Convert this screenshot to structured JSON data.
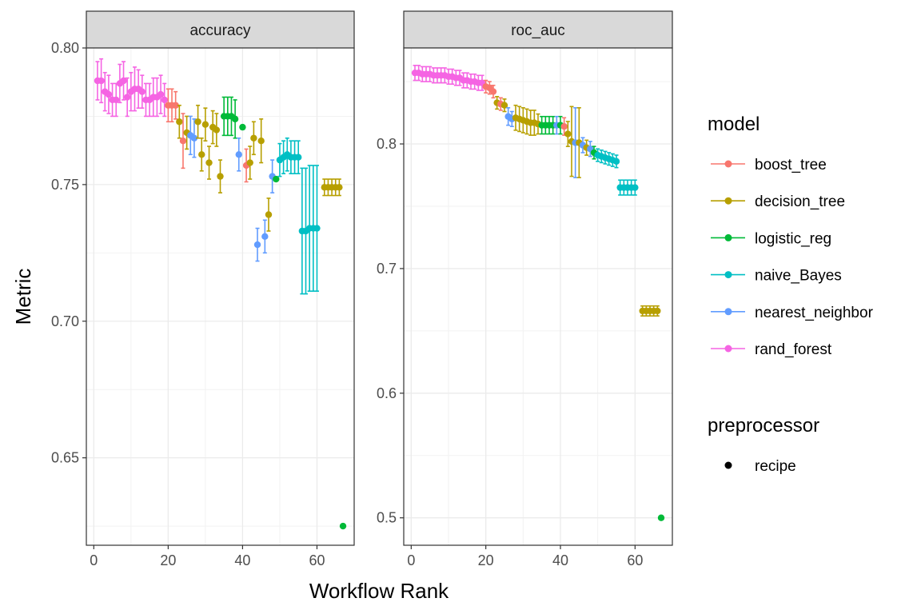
{
  "chart_data": {
    "type": "scatter",
    "xlabel": "Workflow Rank",
    "ylabel": "Metric",
    "x_ticks": [
      0,
      20,
      40,
      60
    ],
    "grid": true,
    "legend_placement": "right",
    "legend": {
      "model_title": "model",
      "preprocessor_title": "preprocessor",
      "preprocessor_items": [
        "recipe"
      ]
    },
    "models": [
      {
        "name": "boost_tree",
        "color": "#F8766D"
      },
      {
        "name": "decision_tree",
        "color": "#B79F00"
      },
      {
        "name": "logistic_reg",
        "color": "#00BA38"
      },
      {
        "name": "naive_Bayes",
        "color": "#00BFC4"
      },
      {
        "name": "nearest_neighbor",
        "color": "#619CFF"
      },
      {
        "name": "rand_forest",
        "color": "#F564E3"
      }
    ],
    "panels": [
      {
        "title": "accuracy",
        "xlim": [
          -2,
          70
        ],
        "ylim": [
          0.618,
          0.8
        ],
        "y_ticks": [
          0.65,
          0.7,
          0.75,
          0.8
        ],
        "y_tick_labels": [
          "0.65",
          "0.70",
          "0.75",
          "0.80"
        ],
        "points": [
          {
            "x": 1,
            "y": 0.788,
            "se": 0.007,
            "m": "rand_forest"
          },
          {
            "x": 2,
            "y": 0.788,
            "se": 0.008,
            "m": "rand_forest"
          },
          {
            "x": 3,
            "y": 0.784,
            "se": 0.007,
            "m": "rand_forest"
          },
          {
            "x": 4,
            "y": 0.783,
            "se": 0.007,
            "m": "rand_forest"
          },
          {
            "x": 5,
            "y": 0.781,
            "se": 0.006,
            "m": "rand_forest"
          },
          {
            "x": 6,
            "y": 0.781,
            "se": 0.006,
            "m": "rand_forest"
          },
          {
            "x": 7,
            "y": 0.787,
            "se": 0.007,
            "m": "rand_forest"
          },
          {
            "x": 8,
            "y": 0.788,
            "se": 0.007,
            "m": "rand_forest"
          },
          {
            "x": 9,
            "y": 0.782,
            "se": 0.007,
            "m": "rand_forest"
          },
          {
            "x": 10,
            "y": 0.784,
            "se": 0.007,
            "m": "rand_forest"
          },
          {
            "x": 11,
            "y": 0.785,
            "se": 0.008,
            "m": "rand_forest"
          },
          {
            "x": 12,
            "y": 0.785,
            "se": 0.007,
            "m": "rand_forest"
          },
          {
            "x": 13,
            "y": 0.784,
            "se": 0.006,
            "m": "rand_forest"
          },
          {
            "x": 14,
            "y": 0.781,
            "se": 0.006,
            "m": "rand_forest"
          },
          {
            "x": 15,
            "y": 0.781,
            "se": 0.006,
            "m": "rand_forest"
          },
          {
            "x": 16,
            "y": 0.782,
            "se": 0.007,
            "m": "rand_forest"
          },
          {
            "x": 17,
            "y": 0.782,
            "se": 0.007,
            "m": "rand_forest"
          },
          {
            "x": 18,
            "y": 0.783,
            "se": 0.007,
            "m": "rand_forest"
          },
          {
            "x": 19,
            "y": 0.781,
            "se": 0.006,
            "m": "rand_forest"
          },
          {
            "x": 20,
            "y": 0.779,
            "se": 0.006,
            "m": "boost_tree"
          },
          {
            "x": 21,
            "y": 0.779,
            "se": 0.006,
            "m": "boost_tree"
          },
          {
            "x": 22,
            "y": 0.779,
            "se": 0.005,
            "m": "boost_tree"
          },
          {
            "x": 23,
            "y": 0.773,
            "se": 0.006,
            "m": "decision_tree"
          },
          {
            "x": 24,
            "y": 0.766,
            "se": 0.01,
            "m": "boost_tree"
          },
          {
            "x": 25,
            "y": 0.769,
            "se": 0.006,
            "m": "decision_tree"
          },
          {
            "x": 26,
            "y": 0.768,
            "se": 0.007,
            "m": "nearest_neighbor"
          },
          {
            "x": 27,
            "y": 0.767,
            "se": 0.007,
            "m": "nearest_neighbor"
          },
          {
            "x": 28,
            "y": 0.773,
            "se": 0.006,
            "m": "decision_tree"
          },
          {
            "x": 29,
            "y": 0.761,
            "se": 0.006,
            "m": "decision_tree"
          },
          {
            "x": 30,
            "y": 0.772,
            "se": 0.006,
            "m": "decision_tree"
          },
          {
            "x": 31,
            "y": 0.758,
            "se": 0.006,
            "m": "decision_tree"
          },
          {
            "x": 32,
            "y": 0.771,
            "se": 0.006,
            "m": "decision_tree"
          },
          {
            "x": 33,
            "y": 0.77,
            "se": 0.006,
            "m": "decision_tree"
          },
          {
            "x": 34,
            "y": 0.753,
            "se": 0.006,
            "m": "decision_tree"
          },
          {
            "x": 35,
            "y": 0.775,
            "se": 0.007,
            "m": "logistic_reg"
          },
          {
            "x": 36,
            "y": 0.775,
            "se": 0.007,
            "m": "logistic_reg"
          },
          {
            "x": 37,
            "y": 0.775,
            "se": 0.007,
            "m": "logistic_reg"
          },
          {
            "x": 38,
            "y": 0.774,
            "se": 0.007,
            "m": "logistic_reg"
          },
          {
            "x": 39,
            "y": 0.761,
            "se": 0.006,
            "m": "nearest_neighbor"
          },
          {
            "x": 40,
            "y": 0.771,
            "se": 0.0,
            "m": "logistic_reg"
          },
          {
            "x": 41,
            "y": 0.757,
            "se": 0.006,
            "m": "boost_tree"
          },
          {
            "x": 42,
            "y": 0.758,
            "se": 0.006,
            "m": "decision_tree"
          },
          {
            "x": 43,
            "y": 0.767,
            "se": 0.006,
            "m": "decision_tree"
          },
          {
            "x": 44,
            "y": 0.728,
            "se": 0.006,
            "m": "nearest_neighbor"
          },
          {
            "x": 45,
            "y": 0.766,
            "se": 0.008,
            "m": "decision_tree"
          },
          {
            "x": 46,
            "y": 0.731,
            "se": 0.006,
            "m": "nearest_neighbor"
          },
          {
            "x": 47,
            "y": 0.739,
            "se": 0.006,
            "m": "decision_tree"
          },
          {
            "x": 48,
            "y": 0.753,
            "se": 0.006,
            "m": "nearest_neighbor"
          },
          {
            "x": 49,
            "y": 0.752,
            "se": 0.0,
            "m": "logistic_reg"
          },
          {
            "x": 50,
            "y": 0.759,
            "se": 0.006,
            "m": "naive_Bayes"
          },
          {
            "x": 51,
            "y": 0.76,
            "se": 0.006,
            "m": "naive_Bayes"
          },
          {
            "x": 52,
            "y": 0.761,
            "se": 0.006,
            "m": "naive_Bayes"
          },
          {
            "x": 53,
            "y": 0.76,
            "se": 0.006,
            "m": "naive_Bayes"
          },
          {
            "x": 54,
            "y": 0.76,
            "se": 0.006,
            "m": "naive_Bayes"
          },
          {
            "x": 55,
            "y": 0.76,
            "se": 0.006,
            "m": "naive_Bayes"
          },
          {
            "x": 56,
            "y": 0.733,
            "se": 0.023,
            "m": "naive_Bayes"
          },
          {
            "x": 57,
            "y": 0.733,
            "se": 0.023,
            "m": "naive_Bayes"
          },
          {
            "x": 58,
            "y": 0.734,
            "se": 0.023,
            "m": "naive_Bayes"
          },
          {
            "x": 59,
            "y": 0.734,
            "se": 0.023,
            "m": "naive_Bayes"
          },
          {
            "x": 60,
            "y": 0.734,
            "se": 0.023,
            "m": "naive_Bayes"
          },
          {
            "x": 62,
            "y": 0.749,
            "se": 0.003,
            "m": "decision_tree"
          },
          {
            "x": 63,
            "y": 0.749,
            "se": 0.003,
            "m": "decision_tree"
          },
          {
            "x": 64,
            "y": 0.749,
            "se": 0.003,
            "m": "decision_tree"
          },
          {
            "x": 65,
            "y": 0.749,
            "se": 0.003,
            "m": "decision_tree"
          },
          {
            "x": 66,
            "y": 0.749,
            "se": 0.003,
            "m": "decision_tree"
          },
          {
            "x": 67,
            "y": 0.625,
            "se": 0.0,
            "m": "logistic_reg"
          }
        ]
      },
      {
        "title": "roc_auc",
        "xlim": [
          -2,
          70
        ],
        "ylim": [
          0.478,
          0.877
        ],
        "y_ticks": [
          0.5,
          0.6,
          0.7,
          0.8
        ],
        "y_tick_labels": [
          "0.5",
          "0.6",
          "0.7",
          "0.8"
        ],
        "points": [
          {
            "x": 1,
            "y": 0.857,
            "se": 0.006,
            "m": "rand_forest"
          },
          {
            "x": 2,
            "y": 0.857,
            "se": 0.006,
            "m": "rand_forest"
          },
          {
            "x": 3,
            "y": 0.856,
            "se": 0.006,
            "m": "rand_forest"
          },
          {
            "x": 4,
            "y": 0.856,
            "se": 0.006,
            "m": "rand_forest"
          },
          {
            "x": 5,
            "y": 0.856,
            "se": 0.006,
            "m": "rand_forest"
          },
          {
            "x": 6,
            "y": 0.855,
            "se": 0.006,
            "m": "rand_forest"
          },
          {
            "x": 7,
            "y": 0.855,
            "se": 0.006,
            "m": "rand_forest"
          },
          {
            "x": 8,
            "y": 0.855,
            "se": 0.006,
            "m": "rand_forest"
          },
          {
            "x": 9,
            "y": 0.855,
            "se": 0.006,
            "m": "rand_forest"
          },
          {
            "x": 10,
            "y": 0.854,
            "se": 0.006,
            "m": "rand_forest"
          },
          {
            "x": 11,
            "y": 0.854,
            "se": 0.006,
            "m": "rand_forest"
          },
          {
            "x": 12,
            "y": 0.853,
            "se": 0.006,
            "m": "rand_forest"
          },
          {
            "x": 13,
            "y": 0.853,
            "se": 0.006,
            "m": "rand_forest"
          },
          {
            "x": 14,
            "y": 0.851,
            "se": 0.006,
            "m": "rand_forest"
          },
          {
            "x": 15,
            "y": 0.851,
            "se": 0.006,
            "m": "rand_forest"
          },
          {
            "x": 16,
            "y": 0.85,
            "se": 0.006,
            "m": "rand_forest"
          },
          {
            "x": 17,
            "y": 0.85,
            "se": 0.006,
            "m": "rand_forest"
          },
          {
            "x": 18,
            "y": 0.849,
            "se": 0.006,
            "m": "rand_forest"
          },
          {
            "x": 19,
            "y": 0.849,
            "se": 0.006,
            "m": "rand_forest"
          },
          {
            "x": 20,
            "y": 0.846,
            "se": 0.005,
            "m": "boost_tree"
          },
          {
            "x": 21,
            "y": 0.845,
            "se": 0.005,
            "m": "boost_tree"
          },
          {
            "x": 22,
            "y": 0.842,
            "se": 0.005,
            "m": "boost_tree"
          },
          {
            "x": 23,
            "y": 0.833,
            "se": 0.005,
            "m": "decision_tree"
          },
          {
            "x": 24,
            "y": 0.832,
            "se": 0.005,
            "m": "boost_tree"
          },
          {
            "x": 25,
            "y": 0.831,
            "se": 0.005,
            "m": "decision_tree"
          },
          {
            "x": 26,
            "y": 0.822,
            "se": 0.007,
            "m": "nearest_neighbor"
          },
          {
            "x": 27,
            "y": 0.82,
            "se": 0.006,
            "m": "nearest_neighbor"
          },
          {
            "x": 28,
            "y": 0.821,
            "se": 0.01,
            "m": "decision_tree"
          },
          {
            "x": 29,
            "y": 0.82,
            "se": 0.01,
            "m": "decision_tree"
          },
          {
            "x": 30,
            "y": 0.819,
            "se": 0.01,
            "m": "decision_tree"
          },
          {
            "x": 31,
            "y": 0.818,
            "se": 0.01,
            "m": "decision_tree"
          },
          {
            "x": 32,
            "y": 0.817,
            "se": 0.01,
            "m": "decision_tree"
          },
          {
            "x": 33,
            "y": 0.817,
            "se": 0.01,
            "m": "decision_tree"
          },
          {
            "x": 34,
            "y": 0.816,
            "se": 0.008,
            "m": "decision_tree"
          },
          {
            "x": 35,
            "y": 0.815,
            "se": 0.007,
            "m": "logistic_reg"
          },
          {
            "x": 36,
            "y": 0.815,
            "se": 0.007,
            "m": "logistic_reg"
          },
          {
            "x": 37,
            "y": 0.815,
            "se": 0.007,
            "m": "logistic_reg"
          },
          {
            "x": 38,
            "y": 0.815,
            "se": 0.007,
            "m": "logistic_reg"
          },
          {
            "x": 39,
            "y": 0.815,
            "se": 0.007,
            "m": "nearest_neighbor"
          },
          {
            "x": 40,
            "y": 0.815,
            "se": 0.007,
            "m": "logistic_reg"
          },
          {
            "x": 41,
            "y": 0.814,
            "se": 0.007,
            "m": "boost_tree"
          },
          {
            "x": 42,
            "y": 0.808,
            "se": 0.01,
            "m": "decision_tree"
          },
          {
            "x": 43,
            "y": 0.802,
            "se": 0.028,
            "m": "decision_tree"
          },
          {
            "x": 44,
            "y": 0.801,
            "se": 0.028,
            "m": "nearest_neighbor"
          },
          {
            "x": 45,
            "y": 0.801,
            "se": 0.028,
            "m": "decision_tree"
          },
          {
            "x": 46,
            "y": 0.799,
            "se": 0.006,
            "m": "nearest_neighbor"
          },
          {
            "x": 47,
            "y": 0.797,
            "se": 0.006,
            "m": "decision_tree"
          },
          {
            "x": 48,
            "y": 0.796,
            "se": 0.006,
            "m": "nearest_neighbor"
          },
          {
            "x": 49,
            "y": 0.793,
            "se": 0.005,
            "m": "logistic_reg"
          },
          {
            "x": 50,
            "y": 0.791,
            "se": 0.005,
            "m": "naive_Bayes"
          },
          {
            "x": 51,
            "y": 0.79,
            "se": 0.005,
            "m": "naive_Bayes"
          },
          {
            "x": 52,
            "y": 0.789,
            "se": 0.005,
            "m": "naive_Bayes"
          },
          {
            "x": 53,
            "y": 0.788,
            "se": 0.005,
            "m": "naive_Bayes"
          },
          {
            "x": 54,
            "y": 0.787,
            "se": 0.005,
            "m": "naive_Bayes"
          },
          {
            "x": 55,
            "y": 0.786,
            "se": 0.005,
            "m": "naive_Bayes"
          },
          {
            "x": 56,
            "y": 0.765,
            "se": 0.006,
            "m": "naive_Bayes"
          },
          {
            "x": 57,
            "y": 0.765,
            "se": 0.006,
            "m": "naive_Bayes"
          },
          {
            "x": 58,
            "y": 0.765,
            "se": 0.006,
            "m": "naive_Bayes"
          },
          {
            "x": 59,
            "y": 0.765,
            "se": 0.006,
            "m": "naive_Bayes"
          },
          {
            "x": 60,
            "y": 0.765,
            "se": 0.006,
            "m": "naive_Bayes"
          },
          {
            "x": 62,
            "y": 0.666,
            "se": 0.004,
            "m": "decision_tree"
          },
          {
            "x": 63,
            "y": 0.666,
            "se": 0.004,
            "m": "decision_tree"
          },
          {
            "x": 64,
            "y": 0.666,
            "se": 0.004,
            "m": "decision_tree"
          },
          {
            "x": 65,
            "y": 0.666,
            "se": 0.004,
            "m": "decision_tree"
          },
          {
            "x": 66,
            "y": 0.666,
            "se": 0.004,
            "m": "decision_tree"
          },
          {
            "x": 67,
            "y": 0.5,
            "se": 0.0,
            "m": "logistic_reg"
          }
        ]
      }
    ]
  }
}
